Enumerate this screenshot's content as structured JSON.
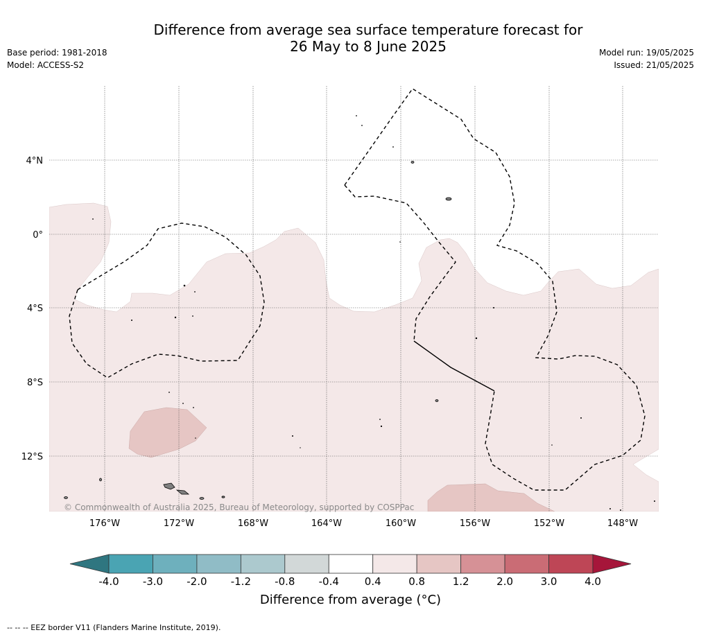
{
  "header": {
    "title_line1": "Difference from average sea surface temperature forecast for",
    "title_line2": "26 May to 8 June 2025",
    "base_period": "Base period: 1981-2018",
    "model": "Model: ACCESS-S2",
    "model_run": "Model run: 19/05/2025",
    "issued": "Issued: 21/05/2025"
  },
  "map": {
    "lat_labels": [
      "4°N",
      "0°",
      "4°S",
      "8°S",
      "12°S"
    ],
    "lon_labels": [
      "176°W",
      "172°W",
      "168°W",
      "164°W",
      "160°W",
      "156°W",
      "152°W",
      "148°W"
    ],
    "copyright": "© Commonwealth of Australia 2025, Bureau of Meteorology, supported by COSPPac",
    "colors": {
      "anomaly_04_08": "#f4e8e8",
      "anomaly_08_12": "#e6c6c4",
      "land": "#808080",
      "eez_line": "#000000"
    }
  },
  "colorbar": {
    "title": "Difference from average (°C)",
    "ticks": [
      "-4.0",
      "-3.0",
      "-2.0",
      "-1.2",
      "-0.8",
      "-0.4",
      "0.4",
      "0.8",
      "1.2",
      "2.0",
      "3.0",
      "4.0"
    ],
    "colors": [
      "#2f7680",
      "#4aa4b3",
      "#6eb0bd",
      "#90bcc6",
      "#acc9ce",
      "#d2d8d8",
      "#ffffff",
      "#f4e8e8",
      "#e6c6c4",
      "#d69196",
      "#ca6c75",
      "#be4656",
      "#a6163a"
    ]
  },
  "footnote": "--  --  -- EEZ border V11 (Flanders Marine Institute, 2019)."
}
